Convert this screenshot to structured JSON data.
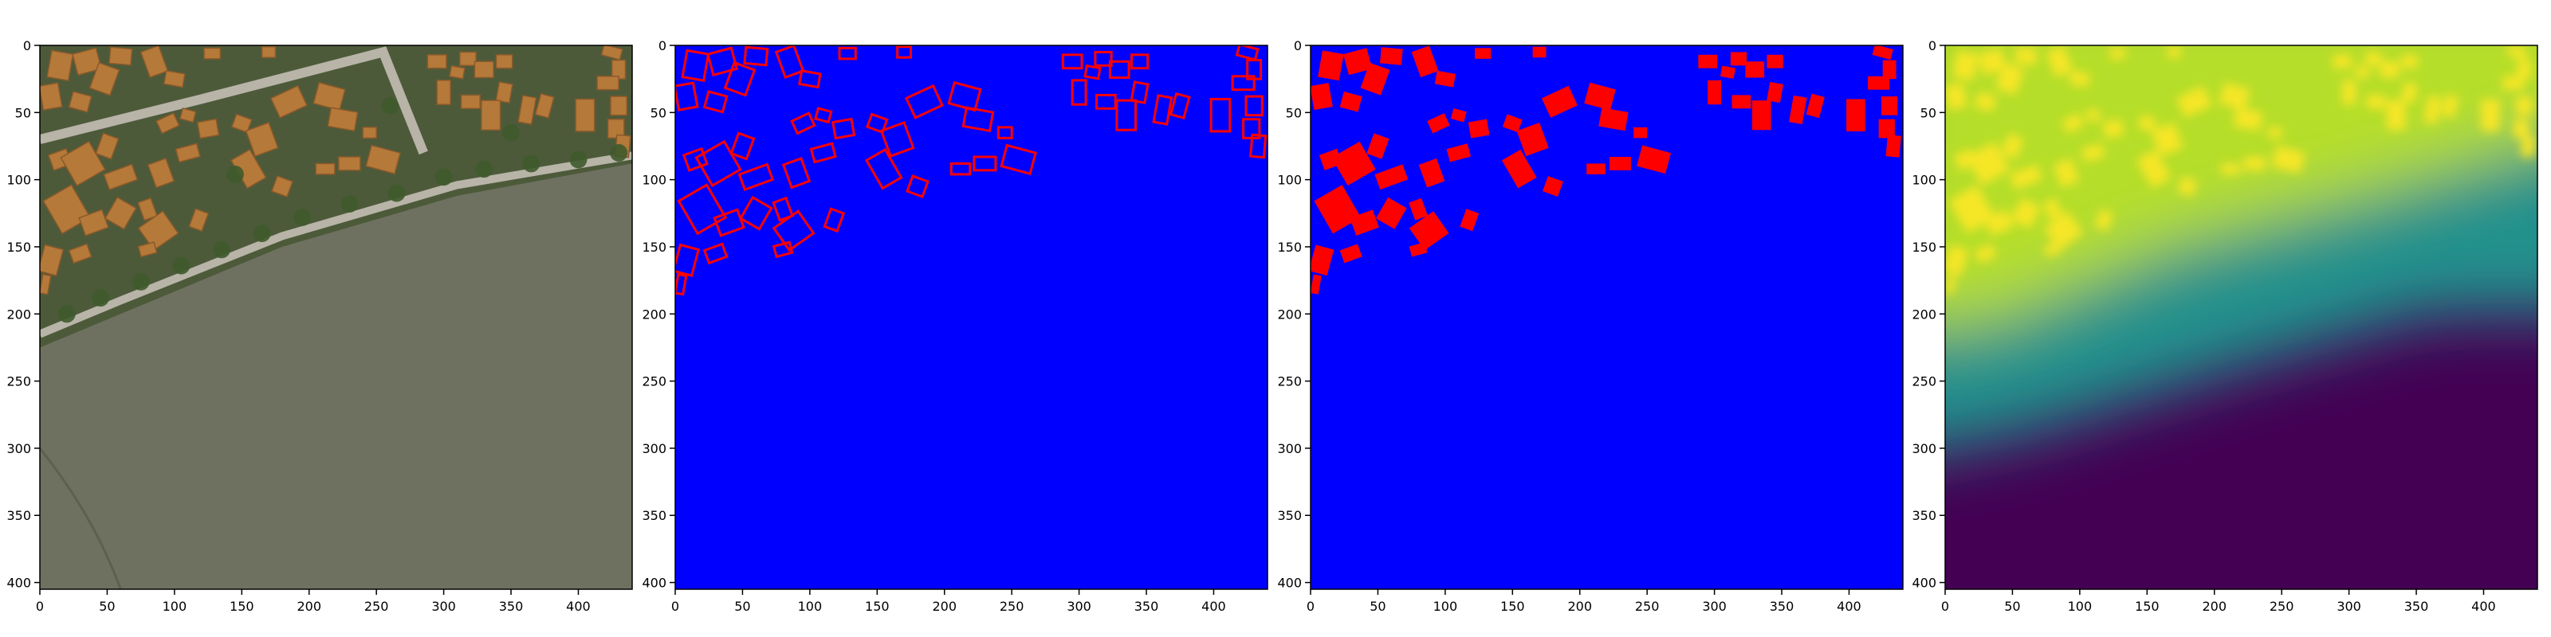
{
  "figure": {
    "panel_count": 4
  },
  "chart_data": [
    {
      "type": "heatmap",
      "content": "aerial-photo",
      "xlim": [
        0,
        440
      ],
      "ylim": [
        405,
        0
      ],
      "xticks": [
        0,
        50,
        100,
        150,
        200,
        250,
        300,
        350,
        400
      ],
      "yticks": [
        0,
        50,
        100,
        150,
        200,
        250,
        300,
        350,
        400
      ],
      "colors": {
        "mudflat": "#6e7160",
        "roofs": "#b5793a",
        "trees": "#3f5a2c",
        "road": "#b8b4a8"
      }
    },
    {
      "type": "heatmap",
      "content": "building-outlines",
      "xlim": [
        0,
        440
      ],
      "ylim": [
        405,
        0
      ],
      "xticks": [
        0,
        50,
        100,
        150,
        200,
        250,
        300,
        350,
        400
      ],
      "yticks": [
        0,
        50,
        100,
        150,
        200,
        250,
        300,
        350,
        400
      ],
      "colors": {
        "background": "#0000ff",
        "building": "#ff0000"
      }
    },
    {
      "type": "heatmap",
      "content": "building-masks",
      "xlim": [
        0,
        440
      ],
      "ylim": [
        405,
        0
      ],
      "xticks": [
        0,
        50,
        100,
        150,
        200,
        250,
        300,
        350,
        400
      ],
      "yticks": [
        0,
        50,
        100,
        150,
        200,
        250,
        300,
        350,
        400
      ],
      "colors": {
        "background": "#0000ff",
        "building": "#ff0000"
      }
    },
    {
      "type": "heatmap",
      "content": "distance-map",
      "colormap": "viridis",
      "xlim": [
        0,
        440
      ],
      "ylim": [
        405,
        0
      ],
      "xticks": [
        0,
        50,
        100,
        150,
        200,
        250,
        300,
        350,
        400
      ],
      "yticks": [
        0,
        50,
        100,
        150,
        200,
        250,
        300,
        350,
        400
      ],
      "colors": {
        "low": "#440154",
        "mid": "#21918c",
        "high": "#fde725"
      }
    }
  ],
  "buildings": [
    {
      "cx": 15,
      "cy": 15,
      "w": 16,
      "h": 20,
      "rot": 10
    },
    {
      "cx": 35,
      "cy": 12,
      "w": 18,
      "h": 16,
      "rot": -15
    },
    {
      "cx": 60,
      "cy": 8,
      "w": 16,
      "h": 12,
      "rot": 5
    },
    {
      "cx": 48,
      "cy": 25,
      "w": 16,
      "h": 20,
      "rot": 20
    },
    {
      "cx": 8,
      "cy": 38,
      "w": 14,
      "h": 18,
      "rot": -10
    },
    {
      "cx": 30,
      "cy": 42,
      "w": 14,
      "h": 12,
      "rot": 15
    },
    {
      "cx": 85,
      "cy": 12,
      "w": 14,
      "h": 20,
      "rot": -20
    },
    {
      "cx": 100,
      "cy": 25,
      "w": 14,
      "h": 10,
      "rot": 10
    },
    {
      "cx": 128,
      "cy": 6,
      "w": 12,
      "h": 8,
      "rot": 0
    },
    {
      "cx": 170,
      "cy": 5,
      "w": 10,
      "h": 8,
      "rot": 0
    },
    {
      "cx": 95,
      "cy": 58,
      "w": 14,
      "h": 10,
      "rot": -25
    },
    {
      "cx": 110,
      "cy": 52,
      "w": 10,
      "h": 8,
      "rot": 15
    },
    {
      "cx": 125,
      "cy": 62,
      "w": 14,
      "h": 12,
      "rot": -10
    },
    {
      "cx": 150,
      "cy": 58,
      "w": 12,
      "h": 10,
      "rot": 20
    },
    {
      "cx": 165,
      "cy": 70,
      "w": 18,
      "h": 20,
      "rot": -20
    },
    {
      "cx": 185,
      "cy": 42,
      "w": 22,
      "h": 16,
      "rot": -25
    },
    {
      "cx": 215,
      "cy": 38,
      "w": 20,
      "h": 16,
      "rot": 15
    },
    {
      "cx": 225,
      "cy": 55,
      "w": 20,
      "h": 14,
      "rot": 10
    },
    {
      "cx": 245,
      "cy": 65,
      "w": 10,
      "h": 8,
      "rot": 0
    },
    {
      "cx": 255,
      "cy": 85,
      "w": 22,
      "h": 16,
      "rot": 15
    },
    {
      "cx": 230,
      "cy": 88,
      "w": 16,
      "h": 10,
      "rot": 0
    },
    {
      "cx": 212,
      "cy": 92,
      "w": 14,
      "h": 8,
      "rot": 0
    },
    {
      "cx": 15,
      "cy": 85,
      "w": 14,
      "h": 12,
      "rot": -20
    },
    {
      "cx": 32,
      "cy": 88,
      "w": 24,
      "h": 24,
      "rot": -30
    },
    {
      "cx": 50,
      "cy": 75,
      "w": 12,
      "h": 16,
      "rot": 20
    },
    {
      "cx": 60,
      "cy": 98,
      "w": 22,
      "h": 12,
      "rot": -20
    },
    {
      "cx": 90,
      "cy": 95,
      "w": 14,
      "h": 18,
      "rot": -20
    },
    {
      "cx": 110,
      "cy": 80,
      "w": 16,
      "h": 10,
      "rot": -15
    },
    {
      "cx": 155,
      "cy": 92,
      "w": 16,
      "h": 24,
      "rot": -30
    },
    {
      "cx": 180,
      "cy": 105,
      "w": 12,
      "h": 12,
      "rot": 20
    },
    {
      "cx": 20,
      "cy": 122,
      "w": 24,
      "h": 28,
      "rot": -30
    },
    {
      "cx": 40,
      "cy": 132,
      "w": 18,
      "h": 14,
      "rot": -20
    },
    {
      "cx": 8,
      "cy": 160,
      "w": 14,
      "h": 20,
      "rot": 15
    },
    {
      "cx": 30,
      "cy": 155,
      "w": 14,
      "h": 10,
      "rot": -20
    },
    {
      "cx": 60,
      "cy": 125,
      "w": 16,
      "h": 18,
      "rot": 30
    },
    {
      "cx": 80,
      "cy": 122,
      "w": 10,
      "h": 14,
      "rot": -20
    },
    {
      "cx": 88,
      "cy": 138,
      "w": 22,
      "h": 20,
      "rot": -35
    },
    {
      "cx": 80,
      "cy": 152,
      "w": 12,
      "h": 8,
      "rot": -15
    },
    {
      "cx": 118,
      "cy": 130,
      "w": 10,
      "h": 14,
      "rot": 20
    },
    {
      "cx": 4,
      "cy": 178,
      "w": 6,
      "h": 14,
      "rot": 10
    },
    {
      "cx": 295,
      "cy": 12,
      "w": 14,
      "h": 10,
      "rot": 0
    },
    {
      "cx": 310,
      "cy": 20,
      "w": 10,
      "h": 8,
      "rot": 10
    },
    {
      "cx": 300,
      "cy": 35,
      "w": 10,
      "h": 18,
      "rot": 0
    },
    {
      "cx": 318,
      "cy": 10,
      "w": 12,
      "h": 10,
      "rot": 0
    },
    {
      "cx": 330,
      "cy": 18,
      "w": 14,
      "h": 12,
      "rot": 0
    },
    {
      "cx": 345,
      "cy": 12,
      "w": 12,
      "h": 10,
      "rot": 0
    },
    {
      "cx": 345,
      "cy": 35,
      "w": 10,
      "h": 14,
      "rot": 10
    },
    {
      "cx": 320,
      "cy": 42,
      "w": 14,
      "h": 10,
      "rot": 0
    },
    {
      "cx": 335,
      "cy": 52,
      "w": 14,
      "h": 22,
      "rot": 0
    },
    {
      "cx": 362,
      "cy": 48,
      "w": 10,
      "h": 20,
      "rot": 10
    },
    {
      "cx": 375,
      "cy": 45,
      "w": 10,
      "h": 16,
      "rot": 15
    },
    {
      "cx": 405,
      "cy": 52,
      "w": 14,
      "h": 24,
      "rot": 0
    },
    {
      "cx": 425,
      "cy": 5,
      "w": 14,
      "h": 8,
      "rot": 15
    },
    {
      "cx": 430,
      "cy": 18,
      "w": 10,
      "h": 14,
      "rot": 0
    },
    {
      "cx": 422,
      "cy": 28,
      "w": 16,
      "h": 10,
      "rot": 0
    },
    {
      "cx": 430,
      "cy": 45,
      "w": 12,
      "h": 14,
      "rot": 0
    },
    {
      "cx": 428,
      "cy": 62,
      "w": 12,
      "h": 14,
      "rot": 0
    },
    {
      "cx": 433,
      "cy": 75,
      "w": 10,
      "h": 16,
      "rot": 5
    }
  ]
}
